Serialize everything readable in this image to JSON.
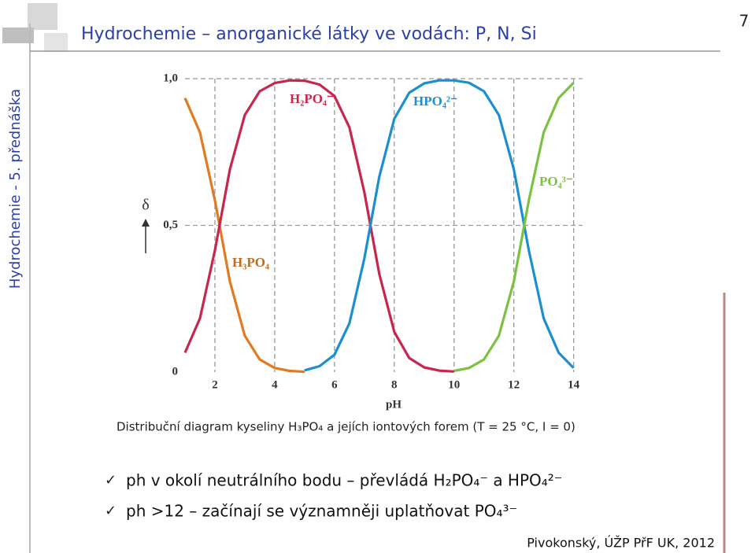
{
  "header": {
    "title": "Hydrochemie – anorganické látky ve vodách: P, N, Si",
    "page_number": "7"
  },
  "sidebar": "Hydrochemie - 5. přednáška",
  "chart_data": {
    "type": "line",
    "x_label": "pH",
    "y_label": "δ",
    "x": [
      1,
      1.5,
      2,
      2.5,
      3,
      3.5,
      4,
      4.5,
      5,
      5.5,
      6,
      6.5,
      7,
      7.5,
      8,
      8.5,
      9,
      9.5,
      10,
      10.5,
      11,
      11.5,
      12,
      12.5,
      13,
      13.5,
      14
    ],
    "series": [
      {
        "name": "H₃PO₄",
        "color": "#e07b22",
        "values": [
          0.934,
          0.817,
          0.585,
          0.309,
          0.124,
          0.043,
          0.014,
          0.004,
          0.001,
          null,
          null,
          null,
          null,
          null,
          null,
          null,
          null,
          null,
          null,
          null,
          null,
          null,
          null,
          null,
          null,
          null,
          null
        ]
      },
      {
        "name": "H₂PO₄⁻",
        "color": "#c8264f",
        "values": [
          0.066,
          0.183,
          0.415,
          0.691,
          0.876,
          0.957,
          0.985,
          0.994,
          0.993,
          0.98,
          0.941,
          0.834,
          0.613,
          0.334,
          0.137,
          0.048,
          0.016,
          0.005,
          0.002,
          null,
          null,
          null,
          null,
          null,
          null,
          null,
          null
        ]
      },
      {
        "name": "HPO₄²⁻",
        "color": "#1b8fd0",
        "values": [
          null,
          null,
          null,
          null,
          null,
          null,
          null,
          null,
          0.006,
          0.02,
          0.059,
          0.166,
          0.387,
          0.666,
          0.863,
          0.952,
          0.984,
          0.994,
          0.994,
          0.986,
          0.957,
          0.876,
          0.691,
          0.415,
          0.183,
          0.066,
          0.014
        ]
      },
      {
        "name": "PO₄³⁻",
        "color": "#7cc242",
        "values": [
          null,
          null,
          null,
          null,
          null,
          null,
          null,
          null,
          null,
          null,
          null,
          null,
          null,
          null,
          null,
          null,
          null,
          null,
          0.004,
          0.014,
          0.043,
          0.124,
          0.309,
          0.585,
          0.817,
          0.934,
          0.986
        ]
      }
    ],
    "xlim": [
      1,
      14.3
    ],
    "xticks": [
      2,
      4,
      6,
      8,
      10,
      12,
      14
    ],
    "ylim": [
      0,
      1
    ],
    "yticks": [
      0,
      {
        "value": 0.5,
        "label": "0,5"
      },
      {
        "value": 1,
        "label": "1,0"
      }
    ],
    "grid": true
  },
  "caption": "Distribuční diagram kyseliny H₃PO₄ a jejích iontových forem (T = 25 °C, I = 0)",
  "bullets": [
    "ph v okolí neutrálního bodu – převládá H₂PO₄⁻ a HPO₄²⁻",
    "ph >12 – začínají se významněji uplatňovat PO₄³⁻"
  ],
  "footer": "Pivokonský, ÚŽP PřF UK, 2012"
}
